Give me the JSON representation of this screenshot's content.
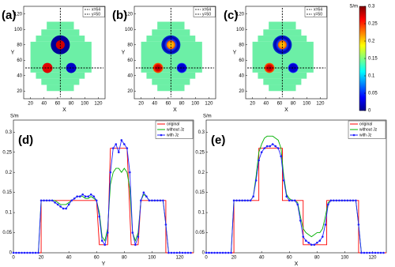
{
  "chart_data": [
    {
      "type": "image",
      "panel_label": "(a)",
      "xlabel": "X",
      "ylabel": "Y",
      "xlim": [
        10,
        130
      ],
      "ylim": [
        10,
        130
      ],
      "xticks": [
        20,
        40,
        60,
        80,
        100,
        120
      ],
      "yticks": [
        20,
        40,
        60,
        80,
        100,
        120
      ],
      "lines": [
        {
          "label": "x=64",
          "x": 64
        },
        {
          "label": "y=50",
          "y": 50
        }
      ]
    },
    {
      "type": "image",
      "panel_label": "(b)",
      "xlabel": "X",
      "ylabel": "Y",
      "xlim": [
        10,
        130
      ],
      "ylim": [
        10,
        130
      ],
      "xticks": [
        20,
        40,
        60,
        80,
        100,
        120
      ],
      "yticks": [
        20,
        40,
        60,
        80,
        100,
        120
      ],
      "lines": [
        {
          "label": "x=64",
          "x": 64
        },
        {
          "label": "y=50",
          "y": 50
        }
      ]
    },
    {
      "type": "image",
      "panel_label": "(c)",
      "xlabel": "X",
      "ylabel": "Y",
      "xlim": [
        10,
        130
      ],
      "ylim": [
        10,
        130
      ],
      "xticks": [
        20,
        40,
        60,
        80,
        100,
        120
      ],
      "yticks": [
        20,
        40,
        60,
        80,
        100,
        120
      ],
      "lines": [
        {
          "label": "x=64",
          "x": 64
        },
        {
          "label": "y=50",
          "y": 50
        }
      ],
      "colorbar": {
        "label": "S/m",
        "lim": [
          0,
          0.3
        ],
        "ticks": [
          0,
          0.05,
          0.1,
          0.15,
          0.2,
          0.25,
          0.3
        ]
      }
    },
    {
      "type": "line",
      "panel_label": "(d)",
      "unit": "S/m",
      "xlabel": "Y",
      "xlim": [
        0,
        130
      ],
      "ylim": [
        0,
        0.33
      ],
      "xticks": [
        0,
        20,
        40,
        60,
        80,
        100,
        120
      ],
      "yticks": [
        0,
        0.05,
        0.1,
        0.15,
        0.2,
        0.25,
        0.3
      ],
      "legend": "upper right",
      "x": [
        0,
        2,
        4,
        6,
        8,
        10,
        12,
        14,
        16,
        18,
        20,
        22,
        24,
        26,
        28,
        30,
        32,
        34,
        36,
        38,
        40,
        42,
        44,
        46,
        48,
        50,
        52,
        54,
        56,
        58,
        60,
        62,
        64,
        66,
        68,
        70,
        72,
        74,
        76,
        78,
        80,
        82,
        84,
        86,
        88,
        90,
        92,
        94,
        96,
        98,
        100,
        102,
        104,
        106,
        108,
        110,
        112,
        114,
        116,
        118,
        120,
        122,
        124,
        126,
        128
      ],
      "series": [
        {
          "name": "original",
          "color": "#ff0000",
          "x": [
            0,
            20,
            20,
            60,
            62,
            68,
            70,
            82,
            85,
            90,
            92,
            110,
            110,
            130
          ],
          "values": [
            0,
            0,
            0.13,
            0.13,
            0.02,
            0.02,
            0.26,
            0.26,
            0.02,
            0.02,
            0.13,
            0.13,
            0,
            0
          ]
        },
        {
          "name": "without Jz",
          "color": "#00b000",
          "values": [
            0,
            0,
            0,
            0,
            0,
            0,
            0,
            0,
            0,
            0,
            0.13,
            0.13,
            0.13,
            0.13,
            0.13,
            0.13,
            0.125,
            0.12,
            0.12,
            0.12,
            0.125,
            0.13,
            0.135,
            0.14,
            0.14,
            0.14,
            0.135,
            0.135,
            0.14,
            0.135,
            0.13,
            0.1,
            0.04,
            0.03,
            0.06,
            0.17,
            0.2,
            0.21,
            0.21,
            0.2,
            0.21,
            0.2,
            0.16,
            0.05,
            0.03,
            0.05,
            0.13,
            0.145,
            0.14,
            0.13,
            0.13,
            0.13,
            0.13,
            0.13,
            0.13,
            0.07,
            0,
            0,
            0,
            0,
            0,
            0,
            0,
            0,
            0
          ]
        },
        {
          "name": "with Jz",
          "color": "#2020ff",
          "marker": true,
          "values": [
            0,
            0,
            0,
            0,
            0,
            0,
            0,
            0,
            0,
            0,
            0.13,
            0.13,
            0.13,
            0.13,
            0.13,
            0.125,
            0.12,
            0.115,
            0.11,
            0.11,
            0.12,
            0.13,
            0.135,
            0.14,
            0.14,
            0.145,
            0.14,
            0.14,
            0.145,
            0.14,
            0.13,
            0.09,
            0.03,
            0.02,
            0.05,
            0.2,
            0.26,
            0.27,
            0.25,
            0.28,
            0.27,
            0.26,
            0.2,
            0.05,
            0.02,
            0.04,
            0.13,
            0.15,
            0.14,
            0.13,
            0.13,
            0.13,
            0.13,
            0.13,
            0.13,
            0.07,
            0,
            0,
            0,
            0,
            0,
            0,
            0,
            0,
            0
          ]
        }
      ]
    },
    {
      "type": "line",
      "panel_label": "(e)",
      "unit": "S/m",
      "xlabel": "X",
      "xlim": [
        0,
        130
      ],
      "ylim": [
        0,
        0.33
      ],
      "xticks": [
        0,
        20,
        40,
        60,
        80,
        100,
        120
      ],
      "yticks": [
        0,
        0.05,
        0.1,
        0.15,
        0.2,
        0.25,
        0.3
      ],
      "legend": "upper right",
      "x": [
        0,
        2,
        4,
        6,
        8,
        10,
        12,
        14,
        16,
        18,
        20,
        22,
        24,
        26,
        28,
        30,
        32,
        34,
        36,
        38,
        40,
        42,
        44,
        46,
        48,
        50,
        52,
        54,
        56,
        58,
        60,
        62,
        64,
        66,
        68,
        70,
        72,
        74,
        76,
        78,
        80,
        82,
        84,
        86,
        88,
        90,
        92,
        94,
        96,
        98,
        100,
        102,
        104,
        106,
        108,
        110,
        112,
        114,
        116,
        118,
        120,
        122,
        124,
        126,
        128
      ],
      "series": [
        {
          "name": "original",
          "color": "#ff0000",
          "x": [
            0,
            20,
            20,
            38,
            38,
            55,
            55,
            70,
            70,
            87,
            87,
            110,
            110,
            130
          ],
          "values": [
            0,
            0,
            0.13,
            0.13,
            0.26,
            0.26,
            0.13,
            0.13,
            0.02,
            0.02,
            0.13,
            0.13,
            0,
            0
          ]
        },
        {
          "name": "without Jz",
          "color": "#00b000",
          "values": [
            0,
            0,
            0,
            0,
            0,
            0,
            0,
            0,
            0,
            0,
            0.13,
            0.13,
            0.13,
            0.13,
            0.13,
            0.13,
            0.13,
            0.14,
            0.19,
            0.25,
            0.27,
            0.285,
            0.29,
            0.29,
            0.29,
            0.285,
            0.28,
            0.26,
            0.19,
            0.145,
            0.135,
            0.13,
            0.13,
            0.125,
            0.09,
            0.06,
            0.05,
            0.045,
            0.04,
            0.045,
            0.05,
            0.05,
            0.06,
            0.09,
            0.125,
            0.13,
            0.13,
            0.13,
            0.13,
            0.13,
            0.13,
            0.13,
            0.13,
            0.13,
            0.13,
            0.07,
            0,
            0,
            0,
            0,
            0,
            0,
            0,
            0,
            0
          ]
        },
        {
          "name": "with Jz",
          "color": "#2020ff",
          "marker": true,
          "values": [
            0,
            0,
            0,
            0,
            0,
            0,
            0,
            0,
            0,
            0,
            0.13,
            0.13,
            0.13,
            0.13,
            0.13,
            0.13,
            0.13,
            0.14,
            0.18,
            0.23,
            0.25,
            0.26,
            0.265,
            0.265,
            0.27,
            0.265,
            0.26,
            0.24,
            0.18,
            0.14,
            0.13,
            0.13,
            0.13,
            0.12,
            0.08,
            0.04,
            0.03,
            0.025,
            0.02,
            0.02,
            0.025,
            0.03,
            0.04,
            0.07,
            0.12,
            0.13,
            0.13,
            0.13,
            0.13,
            0.13,
            0.13,
            0.13,
            0.13,
            0.13,
            0.13,
            0.07,
            0,
            0,
            0,
            0,
            0,
            0,
            0,
            0,
            0
          ]
        }
      ]
    }
  ]
}
